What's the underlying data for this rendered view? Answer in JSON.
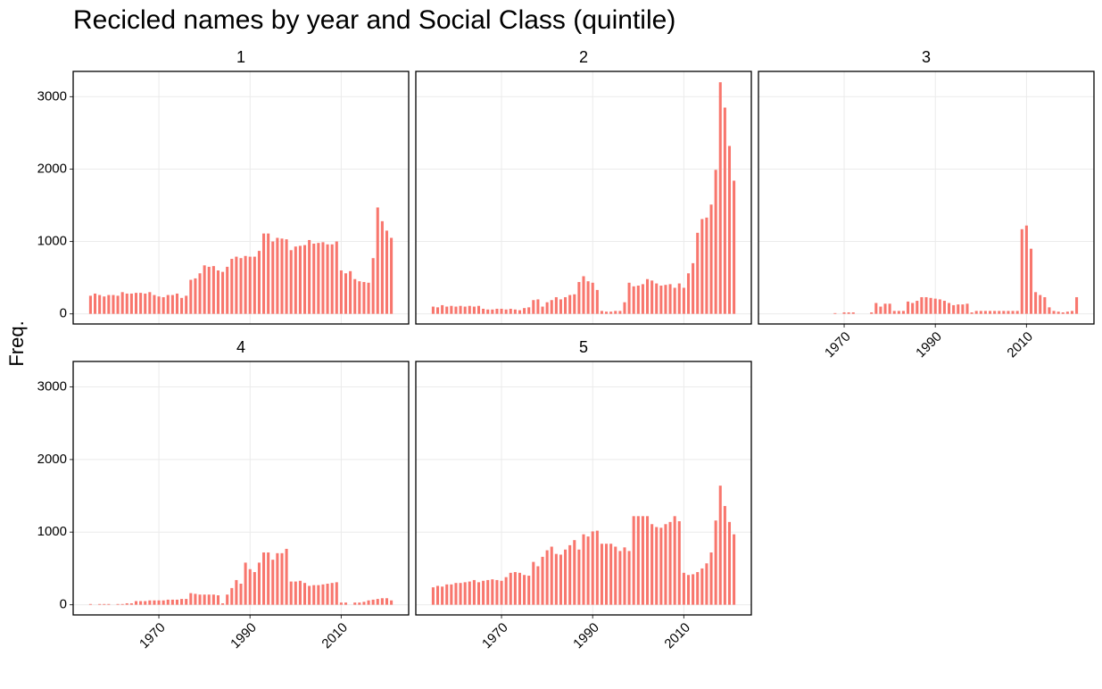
{
  "title": "Recicled names by year and Social Class (quintile)",
  "y_label": "Freq.",
  "chart_data": [
    {
      "type": "bar",
      "title": "1",
      "color": "#f8766d",
      "x": [
        1955,
        1956,
        1957,
        1958,
        1959,
        1960,
        1961,
        1962,
        1963,
        1964,
        1965,
        1966,
        1967,
        1968,
        1969,
        1970,
        1971,
        1972,
        1973,
        1974,
        1975,
        1976,
        1977,
        1978,
        1979,
        1980,
        1981,
        1982,
        1983,
        1984,
        1985,
        1986,
        1987,
        1988,
        1989,
        1990,
        1991,
        1992,
        1993,
        1994,
        1995,
        1996,
        1997,
        1998,
        1999,
        2000,
        2001,
        2002,
        2003,
        2004,
        2005,
        2006,
        2007,
        2008,
        2009,
        2010,
        2011,
        2012,
        2013,
        2014,
        2015,
        2016,
        2017,
        2018,
        2019,
        2020,
        2021
      ],
      "values": [
        250,
        280,
        260,
        240,
        260,
        260,
        250,
        300,
        280,
        280,
        290,
        290,
        280,
        300,
        260,
        240,
        230,
        260,
        260,
        280,
        220,
        250,
        470,
        490,
        560,
        670,
        650,
        660,
        600,
        580,
        650,
        760,
        790,
        770,
        800,
        790,
        790,
        870,
        1110,
        1110,
        1000,
        1050,
        1040,
        1030,
        880,
        930,
        940,
        950,
        1020,
        970,
        980,
        990,
        960,
        960,
        1000,
        600,
        560,
        590,
        480,
        450,
        440,
        430,
        770,
        1470,
        1280,
        1150,
        1050
      ],
      "xlim": [
        1951.2,
        2024.8
      ],
      "xticks": [
        1970,
        1990,
        2010
      ],
      "ylim": [
        -140,
        3350
      ],
      "yticks": [
        0,
        1000,
        2000,
        3000
      ],
      "grid": true
    },
    {
      "type": "bar",
      "title": "2",
      "color": "#f8766d",
      "x": [
        1955,
        1956,
        1957,
        1958,
        1959,
        1960,
        1961,
        1962,
        1963,
        1964,
        1965,
        1966,
        1967,
        1968,
        1969,
        1970,
        1971,
        1972,
        1973,
        1974,
        1975,
        1976,
        1977,
        1978,
        1979,
        1980,
        1981,
        1982,
        1983,
        1984,
        1985,
        1986,
        1987,
        1988,
        1989,
        1990,
        1991,
        1992,
        1993,
        1994,
        1995,
        1996,
        1997,
        1998,
        1999,
        2000,
        2001,
        2002,
        2003,
        2004,
        2005,
        2006,
        2007,
        2008,
        2009,
        2010,
        2011,
        2012,
        2013,
        2014,
        2015,
        2016,
        2017,
        2018,
        2019,
        2020,
        2021
      ],
      "values": [
        100,
        90,
        120,
        100,
        110,
        100,
        110,
        100,
        110,
        100,
        110,
        70,
        60,
        60,
        70,
        70,
        60,
        70,
        60,
        50,
        80,
        90,
        190,
        200,
        100,
        160,
        190,
        230,
        200,
        230,
        260,
        270,
        440,
        520,
        450,
        430,
        330,
        40,
        30,
        30,
        40,
        40,
        160,
        430,
        380,
        390,
        410,
        480,
        460,
        420,
        390,
        400,
        410,
        360,
        420,
        360,
        560,
        700,
        1120,
        1310,
        1330,
        1510,
        1990,
        3200,
        2850,
        2320,
        1840
      ],
      "xlim": [
        1951.2,
        2024.8
      ],
      "xticks": [
        1970,
        1990,
        2010
      ],
      "ylim": [
        -140,
        3350
      ],
      "yticks": [
        0,
        1000,
        2000,
        3000
      ],
      "grid": true
    },
    {
      "type": "bar",
      "title": "3",
      "color": "#f8766d",
      "x": [
        1955,
        1956,
        1957,
        1958,
        1959,
        1960,
        1961,
        1962,
        1963,
        1964,
        1965,
        1966,
        1967,
        1968,
        1969,
        1970,
        1971,
        1972,
        1973,
        1974,
        1975,
        1976,
        1977,
        1978,
        1979,
        1980,
        1981,
        1982,
        1983,
        1984,
        1985,
        1986,
        1987,
        1988,
        1989,
        1990,
        1991,
        1992,
        1993,
        1994,
        1995,
        1996,
        1997,
        1998,
        1999,
        2000,
        2001,
        2002,
        2003,
        2004,
        2005,
        2006,
        2007,
        2008,
        2009,
        2010,
        2011,
        2012,
        2013,
        2014,
        2015,
        2016,
        2017,
        2018,
        2019,
        2020,
        2021
      ],
      "values": [
        null,
        null,
        null,
        null,
        null,
        null,
        null,
        null,
        null,
        null,
        null,
        null,
        null,
        10,
        null,
        20,
        20,
        20,
        null,
        null,
        null,
        20,
        150,
        100,
        140,
        140,
        40,
        40,
        40,
        170,
        150,
        180,
        230,
        230,
        220,
        210,
        200,
        180,
        150,
        120,
        130,
        130,
        140,
        20,
        40,
        40,
        40,
        40,
        40,
        40,
        40,
        40,
        40,
        40,
        1170,
        1220,
        900,
        300,
        260,
        230,
        90,
        40,
        30,
        20,
        30,
        40,
        230
      ],
      "xlim": [
        1951.2,
        2024.8
      ],
      "xticks": [
        1970,
        1990,
        2010
      ],
      "ylim": [
        -140,
        3350
      ],
      "yticks": [
        0,
        1000,
        2000,
        3000
      ],
      "grid": true
    },
    {
      "type": "bar",
      "title": "4",
      "color": "#f8766d",
      "x": [
        1955,
        1956,
        1957,
        1958,
        1959,
        1960,
        1961,
        1962,
        1963,
        1964,
        1965,
        1966,
        1967,
        1968,
        1969,
        1970,
        1971,
        1972,
        1973,
        1974,
        1975,
        1976,
        1977,
        1978,
        1979,
        1980,
        1981,
        1982,
        1983,
        1984,
        1985,
        1986,
        1987,
        1988,
        1989,
        1990,
        1991,
        1992,
        1993,
        1994,
        1995,
        1996,
        1997,
        1998,
        1999,
        2000,
        2001,
        2002,
        2003,
        2004,
        2005,
        2006,
        2007,
        2008,
        2009,
        2010,
        2011,
        2012,
        2013,
        2014,
        2015,
        2016,
        2017,
        2018,
        2019,
        2020,
        2021
      ],
      "values": [
        10,
        null,
        10,
        10,
        10,
        null,
        10,
        10,
        20,
        20,
        50,
        50,
        50,
        60,
        60,
        60,
        60,
        70,
        70,
        70,
        80,
        80,
        160,
        150,
        140,
        140,
        140,
        140,
        130,
        20,
        140,
        230,
        340,
        290,
        580,
        490,
        450,
        580,
        720,
        720,
        620,
        710,
        710,
        770,
        320,
        320,
        330,
        300,
        260,
        270,
        270,
        280,
        290,
        300,
        310,
        30,
        30,
        null,
        30,
        30,
        40,
        60,
        70,
        80,
        90,
        90,
        60
      ],
      "xlim": [
        1951.2,
        2024.8
      ],
      "xticks": [
        1970,
        1990,
        2010
      ],
      "ylim": [
        -140,
        3350
      ],
      "yticks": [
        0,
        1000,
        2000,
        3000
      ],
      "grid": true
    },
    {
      "type": "bar",
      "title": "5",
      "color": "#f8766d",
      "x": [
        1955,
        1956,
        1957,
        1958,
        1959,
        1960,
        1961,
        1962,
        1963,
        1964,
        1965,
        1966,
        1967,
        1968,
        1969,
        1970,
        1971,
        1972,
        1973,
        1974,
        1975,
        1976,
        1977,
        1978,
        1979,
        1980,
        1981,
        1982,
        1983,
        1984,
        1985,
        1986,
        1987,
        1988,
        1989,
        1990,
        1991,
        1992,
        1993,
        1994,
        1995,
        1996,
        1997,
        1998,
        1999,
        2000,
        2001,
        2002,
        2003,
        2004,
        2005,
        2006,
        2007,
        2008,
        2009,
        2010,
        2011,
        2012,
        2013,
        2014,
        2015,
        2016,
        2017,
        2018,
        2019,
        2020,
        2021
      ],
      "values": [
        240,
        260,
        250,
        280,
        280,
        300,
        300,
        310,
        320,
        340,
        310,
        330,
        340,
        350,
        340,
        330,
        380,
        440,
        450,
        440,
        410,
        400,
        590,
        530,
        660,
        750,
        800,
        700,
        690,
        760,
        820,
        890,
        760,
        970,
        940,
        1010,
        1020,
        840,
        840,
        840,
        800,
        740,
        790,
        740,
        1220,
        1220,
        1220,
        1220,
        1110,
        1070,
        1060,
        1110,
        1140,
        1220,
        1150,
        440,
        410,
        420,
        450,
        500,
        570,
        720,
        1160,
        1640,
        1360,
        1140,
        970
      ],
      "xlim": [
        1951.2,
        2024.8
      ],
      "xticks": [
        1970,
        1990,
        2010
      ],
      "ylim": [
        -140,
        3350
      ],
      "yticks": [
        0,
        1000,
        2000,
        3000
      ],
      "grid": true
    }
  ]
}
